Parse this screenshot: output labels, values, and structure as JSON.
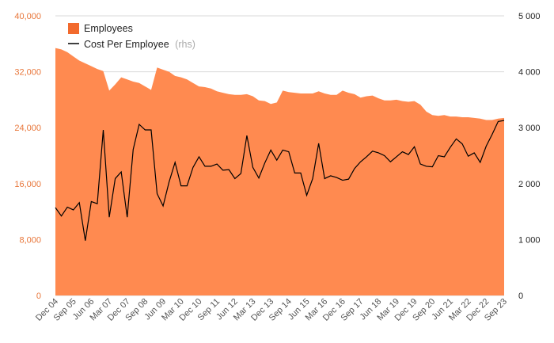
{
  "chart_data": {
    "type": "area+line",
    "title": "",
    "xlabel": "",
    "ylabel": "",
    "y_left": {
      "min": 0,
      "max": 40000,
      "ticks": [
        "0",
        "8,000",
        "16,000",
        "24,000",
        "32,000",
        "40,000"
      ]
    },
    "y_right": {
      "min": 0,
      "max": 5000,
      "ticks": [
        "0",
        "1 000",
        "2 000",
        "3 000",
        "4 000",
        "5 000"
      ]
    },
    "x_ticks": [
      "Dec 04",
      "Sep 05",
      "Jun 06",
      "Mar 07",
      "Dec 07",
      "Sep 08",
      "Jun 09",
      "Mar 10",
      "Dec 10",
      "Sep 11",
      "Jun 12",
      "Mar 13",
      "Dec 13",
      "Sep 14",
      "Jun 15",
      "Mar 16",
      "Dec 16",
      "Sep 17",
      "Jun 18",
      "Mar 19",
      "Dec 19",
      "Sep 20",
      "Jun 21",
      "Mar 22",
      "Dec 22",
      "Sep 23"
    ],
    "legend": {
      "placement": "top-left"
    },
    "grid": true,
    "series": [
      {
        "name": "Employees",
        "axis": "left",
        "kind": "area",
        "color": "#ff8a50",
        "values": [
          35400,
          35200,
          34800,
          34200,
          33600,
          33200,
          32800,
          32400,
          32100,
          29300,
          30200,
          31200,
          30900,
          30600,
          30400,
          29900,
          29400,
          32600,
          32300,
          32000,
          31400,
          31200,
          30900,
          30400,
          29900,
          29800,
          29600,
          29200,
          29000,
          28800,
          28700,
          28700,
          28800,
          28500,
          27900,
          27800,
          27400,
          27600,
          29300,
          29100,
          29000,
          28900,
          28900,
          28900,
          29200,
          28900,
          28700,
          28700,
          29300,
          29000,
          28800,
          28300,
          28500,
          28600,
          28200,
          27900,
          27900,
          28000,
          27800,
          27700,
          27800,
          27300,
          26300,
          25800,
          25700,
          25800,
          25600,
          25600,
          25500,
          25500,
          25400,
          25300,
          25100,
          25100,
          25300,
          25400
        ]
      },
      {
        "name": "Cost Per Employee",
        "axis": "right",
        "kind": "line",
        "color": "#000000",
        "values": [
          1570,
          1420,
          1580,
          1530,
          1660,
          980,
          1680,
          1640,
          2960,
          1400,
          2090,
          2210,
          1400,
          2610,
          3060,
          2960,
          2960,
          1820,
          1600,
          2030,
          2380,
          1960,
          1960,
          2290,
          2480,
          2310,
          2310,
          2350,
          2240,
          2250,
          2090,
          2180,
          2860,
          2290,
          2100,
          2370,
          2600,
          2420,
          2600,
          2570,
          2190,
          2190,
          1790,
          2090,
          2720,
          2090,
          2140,
          2110,
          2060,
          2080,
          2270,
          2390,
          2480,
          2580,
          2550,
          2500,
          2390,
          2480,
          2570,
          2520,
          2660,
          2350,
          2310,
          2300,
          2500,
          2480,
          2650,
          2800,
          2710,
          2490,
          2550,
          2380,
          2670,
          2880,
          3110,
          3130
        ]
      }
    ]
  },
  "legend": {
    "employees": "Employees",
    "cost": "Cost Per Employee",
    "cost_note": "(rhs)"
  },
  "colors": {
    "area": "#ff8a50",
    "line": "#000000",
    "left_tick": "#e8763a",
    "legend_swatch": "#f26a2d"
  }
}
